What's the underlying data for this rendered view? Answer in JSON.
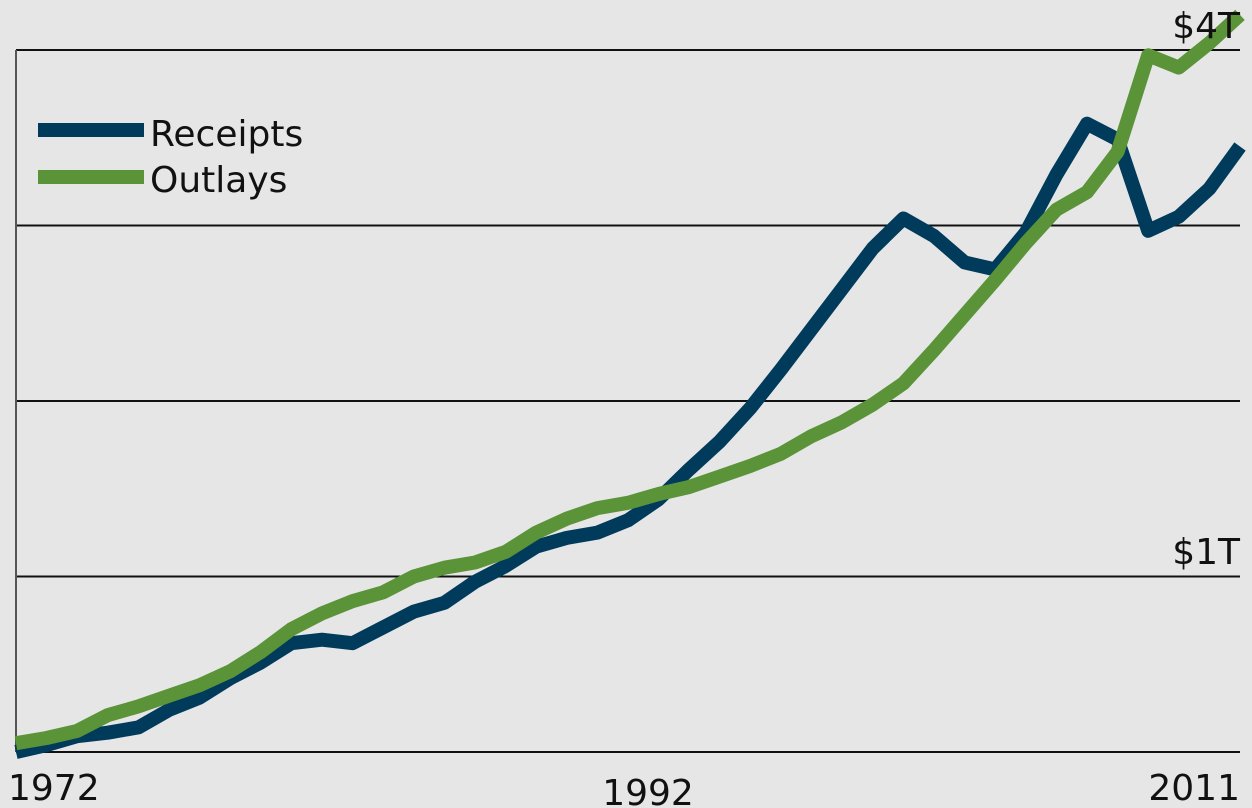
{
  "chart_data": {
    "type": "line",
    "title": "",
    "xlabel": "",
    "ylabel": "",
    "x": [
      1972,
      1973,
      1974,
      1975,
      1976,
      1977,
      1978,
      1979,
      1980,
      1981,
      1982,
      1983,
      1984,
      1985,
      1986,
      1987,
      1988,
      1989,
      1990,
      1991,
      1992,
      1993,
      1994,
      1995,
      1996,
      1997,
      1998,
      1999,
      2000,
      2001,
      2002,
      2003,
      2004,
      2005,
      2006,
      2007,
      2008,
      2009,
      2010,
      2011,
      2012
    ],
    "xlim": [
      1972,
      2012
    ],
    "ylim": [
      0,
      4
    ],
    "series": [
      {
        "name": "Receipts",
        "color": "#003b5c",
        "values": [
          0.0,
          0.04,
          0.09,
          0.11,
          0.14,
          0.24,
          0.31,
          0.42,
          0.51,
          0.62,
          0.64,
          0.62,
          0.71,
          0.8,
          0.85,
          0.97,
          1.06,
          1.17,
          1.22,
          1.25,
          1.32,
          1.44,
          1.61,
          1.77,
          1.96,
          2.18,
          2.41,
          2.64,
          2.87,
          3.04,
          2.94,
          2.79,
          2.75,
          2.96,
          3.29,
          3.58,
          3.49,
          2.97,
          3.05,
          3.21,
          3.45
        ]
      },
      {
        "name": "Outlays",
        "color": "#5a9338",
        "values": [
          0.05,
          0.08,
          0.12,
          0.21,
          0.26,
          0.32,
          0.38,
          0.46,
          0.57,
          0.7,
          0.79,
          0.86,
          0.91,
          1.0,
          1.05,
          1.08,
          1.14,
          1.25,
          1.33,
          1.39,
          1.42,
          1.47,
          1.51,
          1.57,
          1.63,
          1.7,
          1.8,
          1.88,
          1.98,
          2.1,
          2.29,
          2.49,
          2.69,
          2.9,
          3.09,
          3.19,
          3.42,
          3.97,
          3.9,
          4.04,
          4.2
        ]
      }
    ],
    "tick_labels": {
      "x": [
        "1972",
        "1992",
        "2011"
      ],
      "y": [
        "$1T",
        "$4T"
      ]
    },
    "gridlines_y": [
      1,
      2,
      3,
      4
    ],
    "legend": {
      "placement": "top-left",
      "items": [
        "Receipts",
        "Outlays"
      ]
    },
    "grid": true,
    "colors": {
      "background": "#e6e6e6",
      "gridline": "#111111",
      "axis": "#555555"
    }
  }
}
